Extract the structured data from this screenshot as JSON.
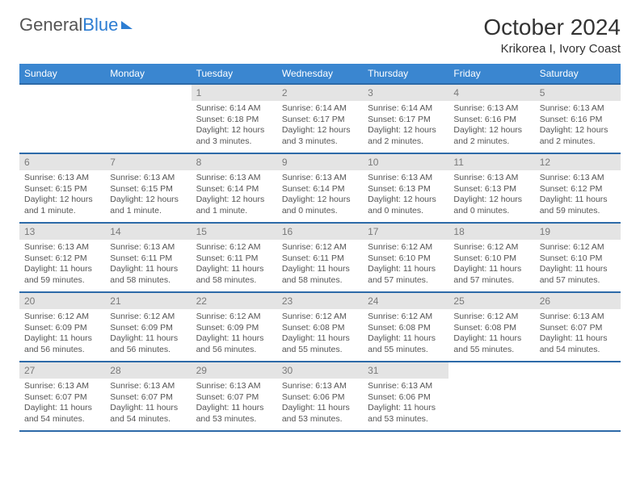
{
  "logo": {
    "part1": "General",
    "part2": "Blue"
  },
  "title": "October 2024",
  "location": "Krikorea I, Ivory Coast",
  "headers": [
    "Sunday",
    "Monday",
    "Tuesday",
    "Wednesday",
    "Thursday",
    "Friday",
    "Saturday"
  ],
  "colors": {
    "header_bg": "#3a86d0",
    "header_border": "#2d6aa8",
    "daynum_bg": "#e4e4e4",
    "text": "#555555"
  },
  "weeks": [
    [
      {
        "day": "",
        "sunrise": "",
        "sunset": "",
        "daylight": "",
        "empty": true
      },
      {
        "day": "",
        "sunrise": "",
        "sunset": "",
        "daylight": "",
        "empty": true
      },
      {
        "day": "1",
        "sunrise": "Sunrise: 6:14 AM",
        "sunset": "Sunset: 6:18 PM",
        "daylight": "Daylight: 12 hours and 3 minutes."
      },
      {
        "day": "2",
        "sunrise": "Sunrise: 6:14 AM",
        "sunset": "Sunset: 6:17 PM",
        "daylight": "Daylight: 12 hours and 3 minutes."
      },
      {
        "day": "3",
        "sunrise": "Sunrise: 6:14 AM",
        "sunset": "Sunset: 6:17 PM",
        "daylight": "Daylight: 12 hours and 2 minutes."
      },
      {
        "day": "4",
        "sunrise": "Sunrise: 6:13 AM",
        "sunset": "Sunset: 6:16 PM",
        "daylight": "Daylight: 12 hours and 2 minutes."
      },
      {
        "day": "5",
        "sunrise": "Sunrise: 6:13 AM",
        "sunset": "Sunset: 6:16 PM",
        "daylight": "Daylight: 12 hours and 2 minutes."
      }
    ],
    [
      {
        "day": "6",
        "sunrise": "Sunrise: 6:13 AM",
        "sunset": "Sunset: 6:15 PM",
        "daylight": "Daylight: 12 hours and 1 minute."
      },
      {
        "day": "7",
        "sunrise": "Sunrise: 6:13 AM",
        "sunset": "Sunset: 6:15 PM",
        "daylight": "Daylight: 12 hours and 1 minute."
      },
      {
        "day": "8",
        "sunrise": "Sunrise: 6:13 AM",
        "sunset": "Sunset: 6:14 PM",
        "daylight": "Daylight: 12 hours and 1 minute."
      },
      {
        "day": "9",
        "sunrise": "Sunrise: 6:13 AM",
        "sunset": "Sunset: 6:14 PM",
        "daylight": "Daylight: 12 hours and 0 minutes."
      },
      {
        "day": "10",
        "sunrise": "Sunrise: 6:13 AM",
        "sunset": "Sunset: 6:13 PM",
        "daylight": "Daylight: 12 hours and 0 minutes."
      },
      {
        "day": "11",
        "sunrise": "Sunrise: 6:13 AM",
        "sunset": "Sunset: 6:13 PM",
        "daylight": "Daylight: 12 hours and 0 minutes."
      },
      {
        "day": "12",
        "sunrise": "Sunrise: 6:13 AM",
        "sunset": "Sunset: 6:12 PM",
        "daylight": "Daylight: 11 hours and 59 minutes."
      }
    ],
    [
      {
        "day": "13",
        "sunrise": "Sunrise: 6:13 AM",
        "sunset": "Sunset: 6:12 PM",
        "daylight": "Daylight: 11 hours and 59 minutes."
      },
      {
        "day": "14",
        "sunrise": "Sunrise: 6:13 AM",
        "sunset": "Sunset: 6:11 PM",
        "daylight": "Daylight: 11 hours and 58 minutes."
      },
      {
        "day": "15",
        "sunrise": "Sunrise: 6:12 AM",
        "sunset": "Sunset: 6:11 PM",
        "daylight": "Daylight: 11 hours and 58 minutes."
      },
      {
        "day": "16",
        "sunrise": "Sunrise: 6:12 AM",
        "sunset": "Sunset: 6:11 PM",
        "daylight": "Daylight: 11 hours and 58 minutes."
      },
      {
        "day": "17",
        "sunrise": "Sunrise: 6:12 AM",
        "sunset": "Sunset: 6:10 PM",
        "daylight": "Daylight: 11 hours and 57 minutes."
      },
      {
        "day": "18",
        "sunrise": "Sunrise: 6:12 AM",
        "sunset": "Sunset: 6:10 PM",
        "daylight": "Daylight: 11 hours and 57 minutes."
      },
      {
        "day": "19",
        "sunrise": "Sunrise: 6:12 AM",
        "sunset": "Sunset: 6:10 PM",
        "daylight": "Daylight: 11 hours and 57 minutes."
      }
    ],
    [
      {
        "day": "20",
        "sunrise": "Sunrise: 6:12 AM",
        "sunset": "Sunset: 6:09 PM",
        "daylight": "Daylight: 11 hours and 56 minutes."
      },
      {
        "day": "21",
        "sunrise": "Sunrise: 6:12 AM",
        "sunset": "Sunset: 6:09 PM",
        "daylight": "Daylight: 11 hours and 56 minutes."
      },
      {
        "day": "22",
        "sunrise": "Sunrise: 6:12 AM",
        "sunset": "Sunset: 6:09 PM",
        "daylight": "Daylight: 11 hours and 56 minutes."
      },
      {
        "day": "23",
        "sunrise": "Sunrise: 6:12 AM",
        "sunset": "Sunset: 6:08 PM",
        "daylight": "Daylight: 11 hours and 55 minutes."
      },
      {
        "day": "24",
        "sunrise": "Sunrise: 6:12 AM",
        "sunset": "Sunset: 6:08 PM",
        "daylight": "Daylight: 11 hours and 55 minutes."
      },
      {
        "day": "25",
        "sunrise": "Sunrise: 6:12 AM",
        "sunset": "Sunset: 6:08 PM",
        "daylight": "Daylight: 11 hours and 55 minutes."
      },
      {
        "day": "26",
        "sunrise": "Sunrise: 6:13 AM",
        "sunset": "Sunset: 6:07 PM",
        "daylight": "Daylight: 11 hours and 54 minutes."
      }
    ],
    [
      {
        "day": "27",
        "sunrise": "Sunrise: 6:13 AM",
        "sunset": "Sunset: 6:07 PM",
        "daylight": "Daylight: 11 hours and 54 minutes."
      },
      {
        "day": "28",
        "sunrise": "Sunrise: 6:13 AM",
        "sunset": "Sunset: 6:07 PM",
        "daylight": "Daylight: 11 hours and 54 minutes."
      },
      {
        "day": "29",
        "sunrise": "Sunrise: 6:13 AM",
        "sunset": "Sunset: 6:07 PM",
        "daylight": "Daylight: 11 hours and 53 minutes."
      },
      {
        "day": "30",
        "sunrise": "Sunrise: 6:13 AM",
        "sunset": "Sunset: 6:06 PM",
        "daylight": "Daylight: 11 hours and 53 minutes."
      },
      {
        "day": "31",
        "sunrise": "Sunrise: 6:13 AM",
        "sunset": "Sunset: 6:06 PM",
        "daylight": "Daylight: 11 hours and 53 minutes."
      },
      {
        "day": "",
        "sunrise": "",
        "sunset": "",
        "daylight": "",
        "empty": true
      },
      {
        "day": "",
        "sunrise": "",
        "sunset": "",
        "daylight": "",
        "empty": true
      }
    ]
  ]
}
